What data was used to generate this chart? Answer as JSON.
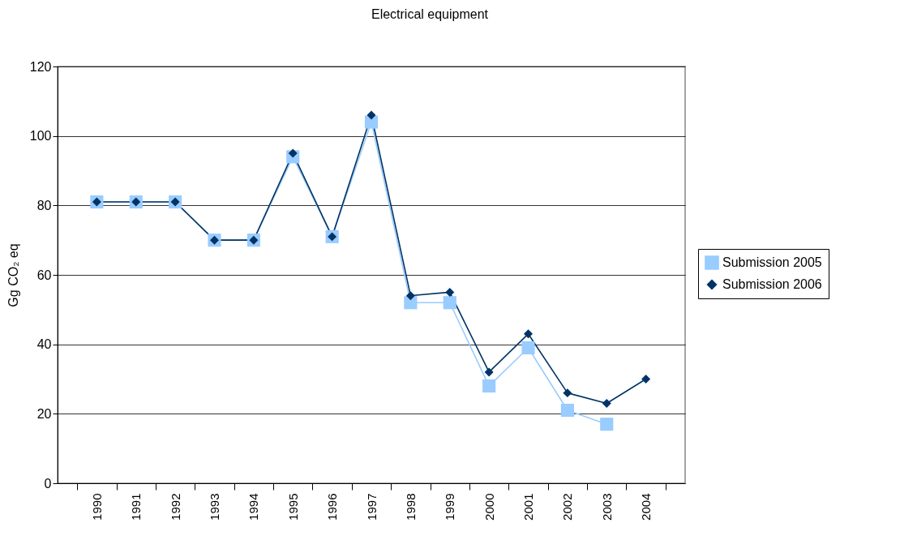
{
  "chart_data": {
    "type": "line",
    "title": "Electrical equipment",
    "ylabel": "Gg CO₂ eq",
    "categories": [
      "1990",
      "1991",
      "1992",
      "1993",
      "1994",
      "1995",
      "1996",
      "1997",
      "1998",
      "1999",
      "2000",
      "2001",
      "2002",
      "2003",
      "2004"
    ],
    "series": [
      {
        "name": "Submission 2005",
        "color": "#99ccff",
        "marker": "square",
        "values": [
          81,
          81,
          81,
          70,
          70,
          94,
          71,
          104,
          52,
          52,
          28,
          39,
          21,
          17,
          null
        ]
      },
      {
        "name": "Submission 2006",
        "color": "#003366",
        "marker": "diamond",
        "values": [
          81,
          81,
          81,
          70,
          70,
          95,
          71,
          106,
          54,
          55,
          32,
          43,
          26,
          23,
          30
        ]
      }
    ],
    "ylim": [
      0,
      120
    ],
    "yticks": [
      0,
      20,
      40,
      60,
      80,
      100,
      120
    ],
    "grid": "y",
    "legend": "right",
    "line_style": "solid"
  }
}
